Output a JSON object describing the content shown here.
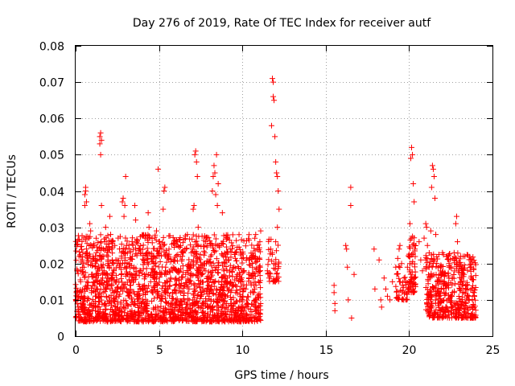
{
  "chart_data": {
    "type": "scatter",
    "title": "Day 276 of 2019, Rate Of TEC Index for receiver autf",
    "xlabel": "GPS time / hours",
    "ylabel": "ROTI / TECUs",
    "xlim": [
      0,
      25
    ],
    "ylim": [
      0,
      0.08
    ],
    "grid": true,
    "x_ticks": [
      0,
      5,
      10,
      15,
      20,
      25
    ],
    "y_ticks": [
      0,
      0.01,
      0.02,
      0.03,
      0.04,
      0.05,
      0.06,
      0.07,
      0.08
    ],
    "x_tick_labels": [
      "0",
      "5",
      "10",
      "15",
      "20",
      "25"
    ],
    "y_tick_labels": [
      "0",
      "0.01",
      "0.02",
      "0.03",
      "0.04",
      "0.05",
      "0.06",
      "0.07",
      "0.08"
    ],
    "marker": "+",
    "series": [
      {
        "name": "ROTI",
        "color": "#ff0000",
        "points": [
          [
            0.05,
            0.012
          ],
          [
            0.1,
            0.018
          ],
          [
            0.15,
            0.008
          ],
          [
            0.2,
            0.022
          ],
          [
            0.25,
            0.006
          ],
          [
            0.3,
            0.015
          ],
          [
            0.35,
            0.011
          ],
          [
            0.4,
            0.021
          ],
          [
            0.45,
            0.009
          ],
          [
            0.5,
            0.019
          ],
          [
            0.55,
            0.039
          ],
          [
            0.55,
            0.036
          ],
          [
            0.6,
            0.041
          ],
          [
            0.6,
            0.04
          ],
          [
            0.65,
            0.037
          ],
          [
            0.7,
            0.023
          ],
          [
            0.75,
            0.014
          ],
          [
            0.8,
            0.027
          ],
          [
            0.85,
            0.031
          ],
          [
            0.9,
            0.029
          ],
          [
            0.95,
            0.012
          ],
          [
            1.0,
            0.017
          ],
          [
            1.05,
            0.022
          ],
          [
            1.1,
            0.009
          ],
          [
            1.15,
            0.014
          ],
          [
            1.2,
            0.02
          ],
          [
            1.25,
            0.013
          ],
          [
            1.3,
            0.021
          ],
          [
            1.35,
            0.018
          ],
          [
            1.4,
            0.008
          ],
          [
            1.45,
            0.055
          ],
          [
            1.45,
            0.053
          ],
          [
            1.5,
            0.056
          ],
          [
            1.5,
            0.05
          ],
          [
            1.55,
            0.054
          ],
          [
            1.55,
            0.036
          ],
          [
            1.6,
            0.022
          ],
          [
            1.65,
            0.012
          ],
          [
            1.7,
            0.018
          ],
          [
            1.75,
            0.026
          ],
          [
            1.8,
            0.03
          ],
          [
            1.85,
            0.011
          ],
          [
            1.9,
            0.016
          ],
          [
            1.95,
            0.02
          ],
          [
            2.0,
            0.009
          ],
          [
            2.05,
            0.033
          ],
          [
            2.1,
            0.028
          ],
          [
            2.15,
            0.014
          ],
          [
            2.2,
            0.021
          ],
          [
            2.25,
            0.012
          ],
          [
            2.3,
            0.018
          ],
          [
            2.35,
            0.025
          ],
          [
            2.4,
            0.007
          ],
          [
            2.45,
            0.015
          ],
          [
            2.5,
            0.02
          ],
          [
            2.55,
            0.027
          ],
          [
            2.6,
            0.011
          ],
          [
            2.65,
            0.019
          ],
          [
            2.7,
            0.013
          ],
          [
            2.75,
            0.023
          ],
          [
            2.8,
            0.037
          ],
          [
            2.85,
            0.038
          ],
          [
            2.9,
            0.033
          ],
          [
            2.95,
            0.036
          ],
          [
            3.0,
            0.044
          ],
          [
            3.05,
            0.025
          ],
          [
            3.1,
            0.017
          ],
          [
            3.15,
            0.012
          ],
          [
            3.2,
            0.02
          ],
          [
            3.3,
            0.014
          ],
          [
            3.4,
            0.022
          ],
          [
            3.5,
            0.016
          ],
          [
            3.55,
            0.036
          ],
          [
            3.6,
            0.032
          ],
          [
            3.7,
            0.011
          ],
          [
            3.8,
            0.024
          ],
          [
            3.9,
            0.018
          ],
          [
            4.0,
            0.013
          ],
          [
            4.1,
            0.021
          ],
          [
            4.2,
            0.01
          ],
          [
            4.3,
            0.027
          ],
          [
            4.35,
            0.034
          ],
          [
            4.4,
            0.03
          ],
          [
            4.5,
            0.015
          ],
          [
            4.6,
            0.012
          ],
          [
            4.7,
            0.02
          ],
          [
            4.8,
            0.008
          ],
          [
            4.85,
            0.029
          ],
          [
            4.9,
            0.014
          ],
          [
            4.95,
            0.046
          ],
          [
            5.0,
            0.023
          ],
          [
            5.1,
            0.017
          ],
          [
            5.2,
            0.011
          ],
          [
            5.25,
            0.035
          ],
          [
            5.3,
            0.04
          ],
          [
            5.35,
            0.041
          ],
          [
            5.4,
            0.019
          ],
          [
            5.5,
            0.013
          ],
          [
            5.6,
            0.024
          ],
          [
            5.7,
            0.016
          ],
          [
            5.8,
            0.009
          ],
          [
            5.9,
            0.021
          ],
          [
            6.0,
            0.014
          ],
          [
            6.1,
            0.026
          ],
          [
            6.2,
            0.018
          ],
          [
            6.3,
            0.012
          ],
          [
            6.4,
            0.022
          ],
          [
            6.5,
            0.01
          ],
          [
            6.6,
            0.017
          ],
          [
            6.7,
            0.028
          ],
          [
            6.8,
            0.013
          ],
          [
            6.9,
            0.019
          ],
          [
            7.0,
            0.024
          ],
          [
            7.05,
            0.035
          ],
          [
            7.1,
            0.036
          ],
          [
            7.15,
            0.05
          ],
          [
            7.2,
            0.051
          ],
          [
            7.25,
            0.048
          ],
          [
            7.3,
            0.044
          ],
          [
            7.35,
            0.03
          ],
          [
            7.4,
            0.018
          ],
          [
            7.5,
            0.012
          ],
          [
            7.6,
            0.009
          ],
          [
            7.7,
            0.02
          ],
          [
            7.8,
            0.026
          ],
          [
            7.9,
            0.015
          ],
          [
            8.0,
            0.011
          ],
          [
            8.1,
            0.022
          ],
          [
            8.2,
            0.04
          ],
          [
            8.25,
            0.044
          ],
          [
            8.3,
            0.047
          ],
          [
            8.35,
            0.045
          ],
          [
            8.4,
            0.039
          ],
          [
            8.45,
            0.05
          ],
          [
            8.5,
            0.036
          ],
          [
            8.55,
            0.042
          ],
          [
            8.6,
            0.025
          ],
          [
            8.7,
            0.013
          ],
          [
            8.8,
            0.034
          ],
          [
            8.9,
            0.018
          ],
          [
            9.0,
            0.011
          ],
          [
            9.1,
            0.016
          ],
          [
            9.2,
            0.021
          ],
          [
            9.3,
            0.009
          ],
          [
            9.4,
            0.014
          ],
          [
            9.5,
            0.019
          ],
          [
            9.6,
            0.012
          ],
          [
            9.7,
            0.017
          ],
          [
            9.8,
            0.008
          ],
          [
            9.9,
            0.015
          ],
          [
            10.0,
            0.011
          ],
          [
            10.1,
            0.018
          ],
          [
            10.2,
            0.013
          ],
          [
            10.3,
            0.009
          ],
          [
            10.4,
            0.016
          ],
          [
            10.5,
            0.012
          ],
          [
            10.6,
            0.019
          ],
          [
            10.7,
            0.022
          ],
          [
            10.8,
            0.028
          ],
          [
            10.9,
            0.025
          ],
          [
            11.0,
            0.019
          ],
          [
            11.05,
            0.026
          ],
          [
            11.1,
            0.029
          ],
          [
            11.5,
            0.018
          ],
          [
            11.6,
            0.016
          ],
          [
            11.7,
            0.024
          ],
          [
            11.75,
            0.058
          ],
          [
            11.8,
            0.071
          ],
          [
            11.85,
            0.07
          ],
          [
            11.85,
            0.066
          ],
          [
            11.9,
            0.065
          ],
          [
            11.95,
            0.055
          ],
          [
            12.0,
            0.048
          ],
          [
            12.05,
            0.045
          ],
          [
            12.1,
            0.044
          ],
          [
            12.15,
            0.04
          ],
          [
            12.1,
            0.03
          ],
          [
            12.2,
            0.035
          ],
          [
            11.9,
            0.02
          ],
          [
            12.0,
            0.026
          ],
          [
            15.5,
            0.014
          ],
          [
            15.5,
            0.012
          ],
          [
            15.55,
            0.009
          ],
          [
            15.55,
            0.007
          ],
          [
            16.2,
            0.025
          ],
          [
            16.25,
            0.024
          ],
          [
            16.3,
            0.019
          ],
          [
            16.35,
            0.01
          ],
          [
            16.5,
            0.041
          ],
          [
            16.5,
            0.036
          ],
          [
            16.55,
            0.005
          ],
          [
            16.7,
            0.017
          ],
          [
            17.9,
            0.024
          ],
          [
            17.95,
            0.013
          ],
          [
            18.2,
            0.021
          ],
          [
            18.3,
            0.01
          ],
          [
            18.35,
            0.008
          ],
          [
            18.5,
            0.016
          ],
          [
            18.6,
            0.013
          ],
          [
            18.7,
            0.011
          ],
          [
            18.85,
            0.01
          ],
          [
            19.0,
            0.015
          ],
          [
            19.2,
            0.019
          ],
          [
            19.4,
            0.024
          ],
          [
            19.45,
            0.025
          ],
          [
            19.55,
            0.02
          ],
          [
            19.6,
            0.014
          ],
          [
            19.7,
            0.016
          ],
          [
            19.8,
            0.012
          ],
          [
            19.9,
            0.019
          ],
          [
            20.0,
            0.022
          ],
          [
            20.05,
            0.031
          ],
          [
            20.1,
            0.049
          ],
          [
            20.15,
            0.052
          ],
          [
            20.2,
            0.05
          ],
          [
            20.25,
            0.042
          ],
          [
            20.3,
            0.037
          ],
          [
            20.35,
            0.024
          ],
          [
            20.6,
            0.026
          ],
          [
            20.7,
            0.021
          ],
          [
            20.8,
            0.018
          ],
          [
            20.9,
            0.027
          ],
          [
            21.0,
            0.031
          ],
          [
            21.05,
            0.03
          ],
          [
            21.1,
            0.025
          ],
          [
            21.2,
            0.019
          ],
          [
            21.3,
            0.029
          ],
          [
            21.35,
            0.041
          ],
          [
            21.4,
            0.047
          ],
          [
            21.45,
            0.046
          ],
          [
            21.5,
            0.044
          ],
          [
            21.55,
            0.038
          ],
          [
            21.6,
            0.028
          ],
          [
            21.7,
            0.015
          ],
          [
            21.8,
            0.011
          ],
          [
            21.9,
            0.017
          ],
          [
            22.0,
            0.023
          ],
          [
            22.1,
            0.012
          ],
          [
            22.2,
            0.008
          ],
          [
            22.3,
            0.014
          ],
          [
            22.4,
            0.019
          ],
          [
            22.5,
            0.011
          ],
          [
            22.6,
            0.016
          ],
          [
            22.7,
            0.023
          ],
          [
            22.8,
            0.031
          ],
          [
            22.85,
            0.033
          ],
          [
            22.9,
            0.026
          ],
          [
            23.0,
            0.018
          ],
          [
            23.1,
            0.022
          ],
          [
            23.2,
            0.012
          ],
          [
            23.3,
            0.017
          ],
          [
            23.4,
            0.009
          ],
          [
            23.5,
            0.014
          ],
          [
            23.6,
            0.011
          ],
          [
            23.7,
            0.016
          ],
          [
            23.8,
            0.008
          ],
          [
            23.9,
            0.012
          ]
        ]
      }
    ],
    "dense_segments": [
      {
        "x_start": 0.0,
        "x_end": 11.1,
        "y_low": 0.004,
        "y_high": 0.028,
        "count": 1900
      },
      {
        "x_start": 20.0,
        "x_end": 20.4,
        "y_low": 0.012,
        "y_high": 0.028,
        "count": 60
      },
      {
        "x_start": 21.0,
        "x_end": 24.0,
        "y_low": 0.005,
        "y_high": 0.023,
        "count": 450
      },
      {
        "x_start": 19.2,
        "x_end": 20.0,
        "y_low": 0.01,
        "y_high": 0.023,
        "count": 45
      },
      {
        "x_start": 11.5,
        "x_end": 12.2,
        "y_low": 0.015,
        "y_high": 0.027,
        "count": 40
      }
    ]
  }
}
